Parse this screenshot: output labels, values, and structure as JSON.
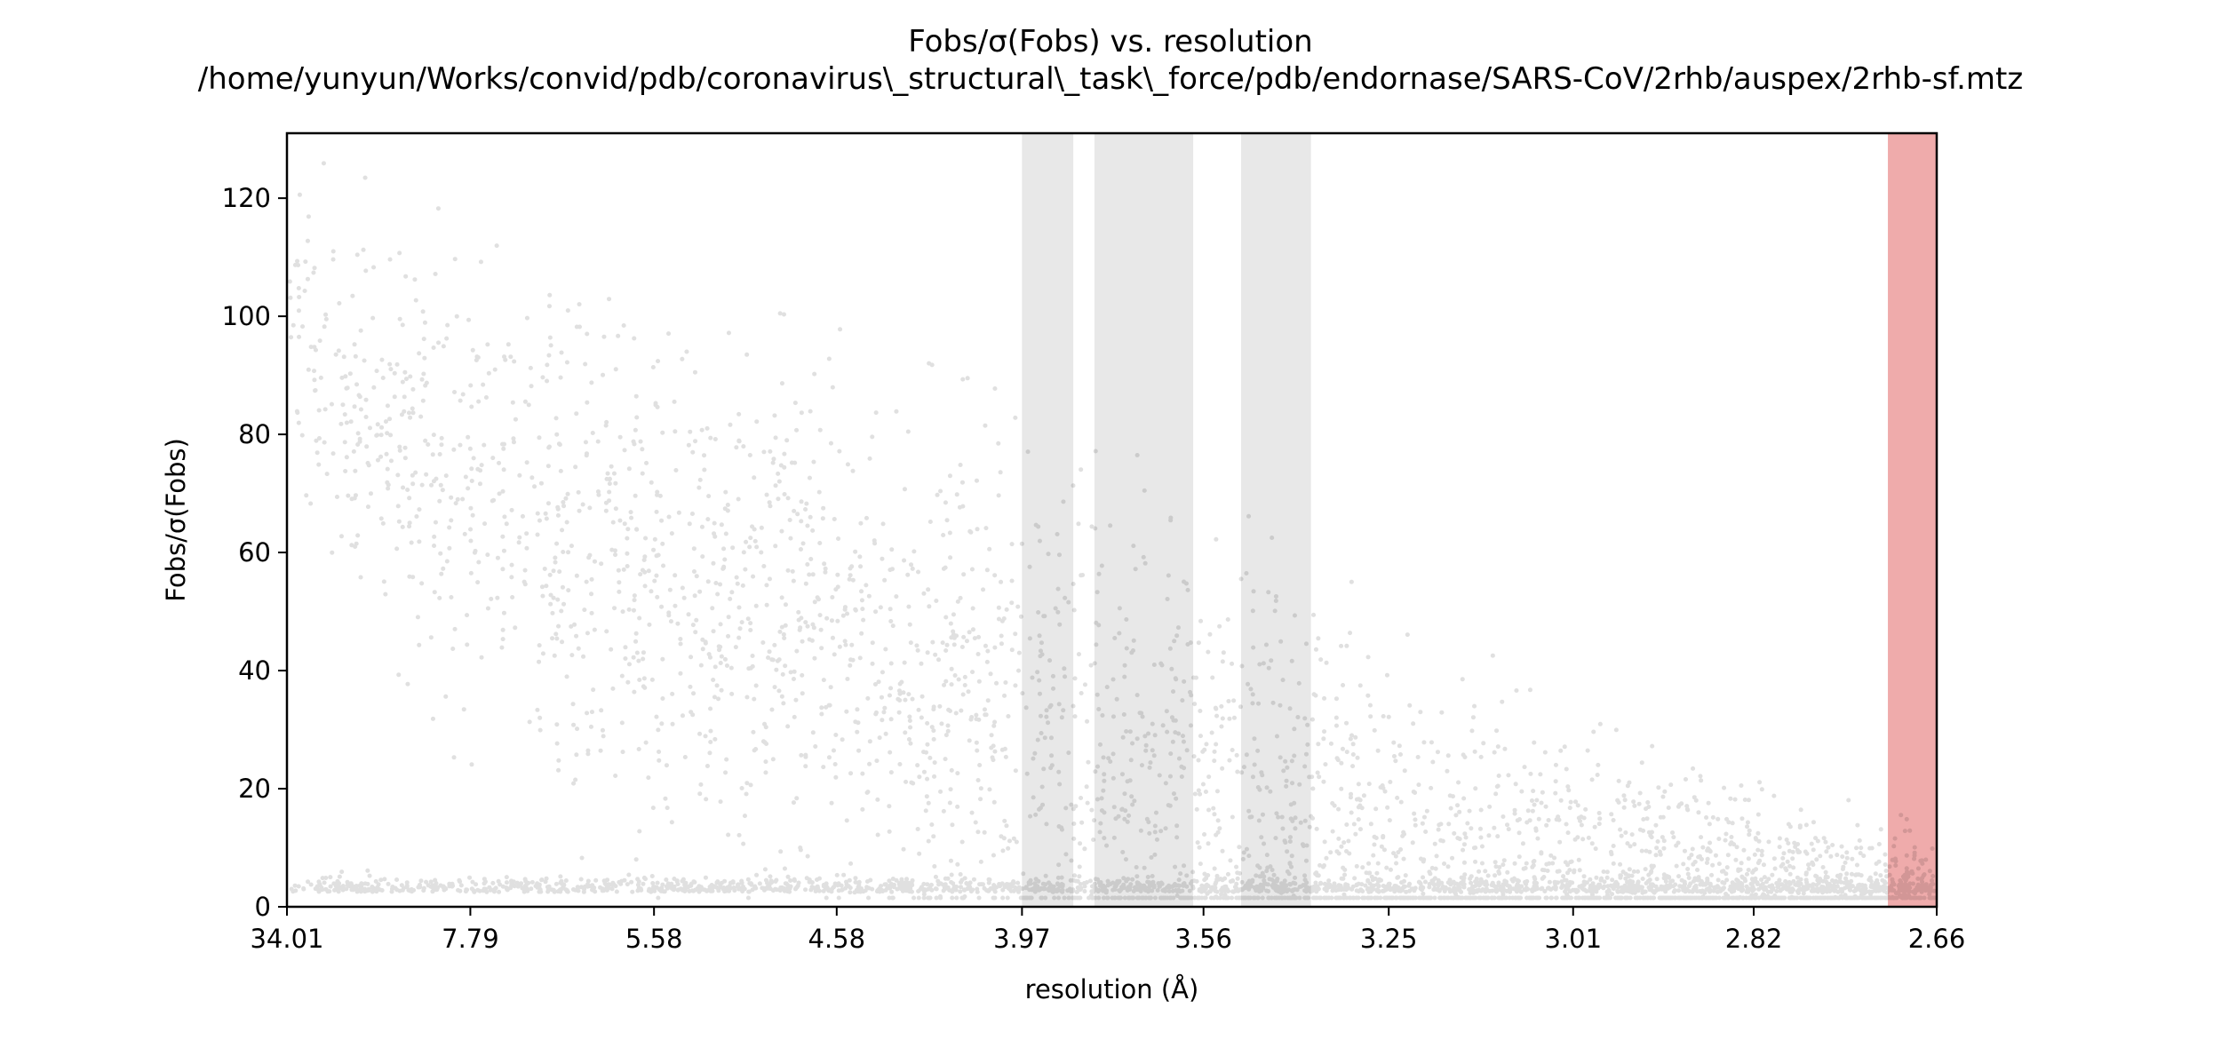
{
  "chart_data": {
    "type": "scatter",
    "title": "Fobs/σ(Fobs) vs. resolution",
    "subtitle": "/home/yunyun/Works/convid/pdb/coronavirus\\_structural\\_task\\_force/pdb/endornase/SARS-CoV/2rhb/auspex/2rhb-sf.mtz",
    "xlabel": "resolution (Å)",
    "ylabel": "Fobs/σ(Fobs)",
    "x_scale": "1/d^2 (inverse-squared resolution, reversed labels)",
    "x_range_resolution": [
      34.01,
      2.66
    ],
    "ylim": [
      0,
      131
    ],
    "x_ticks": [
      "34.01",
      "7.79",
      "5.58",
      "4.58",
      "3.97",
      "3.56",
      "3.25",
      "3.01",
      "2.82",
      "2.66"
    ],
    "y_ticks": [
      "0",
      "20",
      "40",
      "60",
      "80",
      "100",
      "120"
    ],
    "grey_bands_resolution": [
      [
        3.97,
        3.84
      ],
      [
        3.79,
        3.58
      ],
      [
        3.49,
        3.37
      ]
    ],
    "red_band_resolution": [
      2.7,
      2.66
    ],
    "marker_color": "#000000",
    "band_color_grey": "#d9d9d9",
    "band_color_red": "#e57373",
    "trend_description": [
      {
        "resolution": 34.01,
        "upper": 123,
        "median": 95
      },
      {
        "resolution": 7.79,
        "upper": 110,
        "median": 70
      },
      {
        "resolution": 5.58,
        "upper": 100,
        "median": 55
      },
      {
        "resolution": 4.58,
        "upper": 92,
        "median": 45
      },
      {
        "resolution": 3.97,
        "upper": 80,
        "median": 30
      },
      {
        "resolution": 3.56,
        "upper": 65,
        "median": 15
      },
      {
        "resolution": 3.25,
        "upper": 45,
        "median": 8
      },
      {
        "resolution": 3.01,
        "upper": 30,
        "median": 5
      },
      {
        "resolution": 2.82,
        "upper": 18,
        "median": 3
      },
      {
        "resolution": 2.66,
        "upper": 12,
        "median": 3
      }
    ]
  }
}
